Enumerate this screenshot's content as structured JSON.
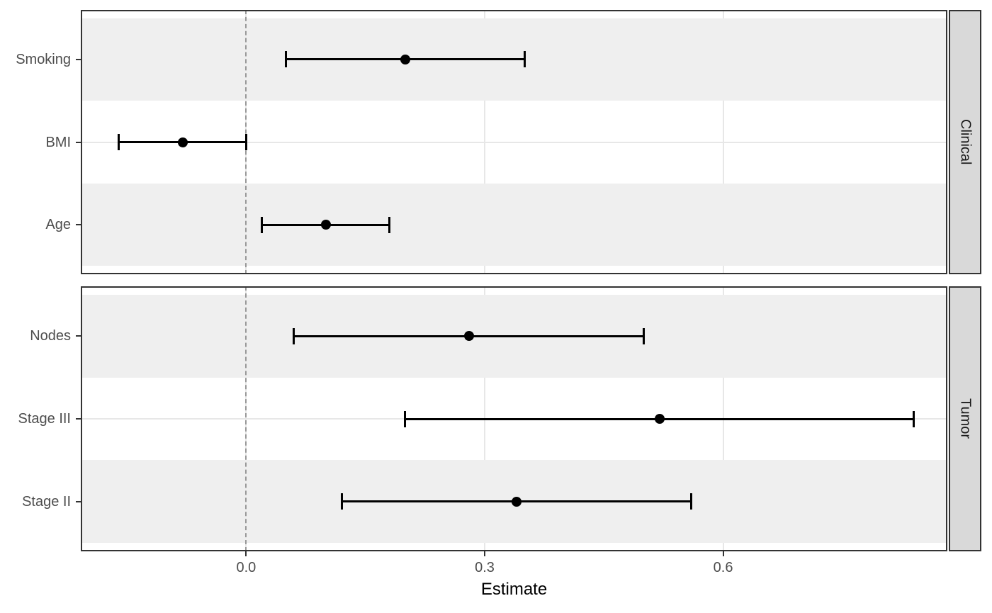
{
  "chart_data": {
    "type": "scatter",
    "subtype": "forest-plot-faceted",
    "title": "",
    "xlabel": "Estimate",
    "ylabel": "",
    "x_ticks": [
      0.0,
      0.3,
      0.6
    ],
    "x_tick_labels": [
      "0.0",
      "0.3",
      "0.6"
    ],
    "x_range": [
      -0.208,
      0.882
    ],
    "reference_line_x": 0,
    "grid": true,
    "legend": "none",
    "facets": [
      {
        "label": "Clinical",
        "rows": [
          {
            "label": "Smoking",
            "estimate": 0.2,
            "ci_low": 0.05,
            "ci_high": 0.35
          },
          {
            "label": "BMI",
            "estimate": -0.08,
            "ci_low": -0.16,
            "ci_high": 0.0
          },
          {
            "label": "Age",
            "estimate": 0.1,
            "ci_low": 0.02,
            "ci_high": 0.18
          }
        ]
      },
      {
        "label": "Tumor",
        "rows": [
          {
            "label": "Nodes",
            "estimate": 0.28,
            "ci_low": 0.06,
            "ci_high": 0.5
          },
          {
            "label": "Stage III",
            "estimate": 0.52,
            "ci_low": 0.2,
            "ci_high": 0.84
          },
          {
            "label": "Stage II",
            "estimate": 0.34,
            "ci_low": 0.12,
            "ci_high": 0.56
          }
        ]
      }
    ],
    "colors": {
      "point_and_ci": "#000000",
      "stripe_band": "#EFEFEF",
      "gridline": "#E7E7E7",
      "reference_line": "#999999",
      "panel_border": "#333333",
      "strip_background": "#D9D9D9",
      "strip_text": "#1A1A1A",
      "axis_text": "#4D4D4D",
      "axis_title_text": "#000000"
    }
  }
}
